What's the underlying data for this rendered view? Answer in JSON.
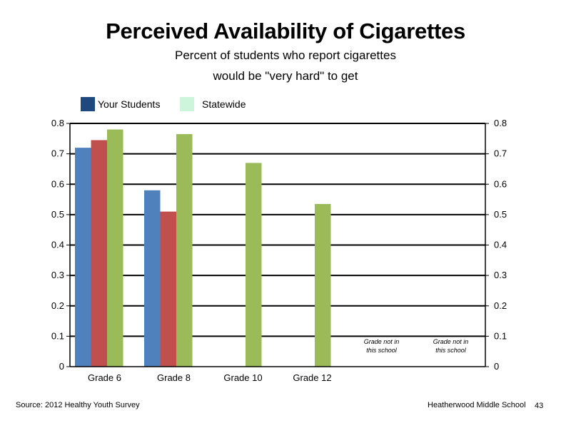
{
  "title": "Perceived Availability of Cigarettes",
  "subtitle_line1": "Percent of students who report cigarettes",
  "subtitle_line2": "would be \"very hard\" to get",
  "legend": [
    {
      "label": "Your Students",
      "color": "#1F497D"
    },
    {
      "label": "Statewide",
      "color": "#CCF5DC"
    }
  ],
  "chart_data": {
    "type": "bar",
    "categories": [
      "Grade 6",
      "Grade 8",
      "Grade 10",
      "Grade 12",
      "",
      ""
    ],
    "series": [
      {
        "color": "#4F81BD",
        "values": [
          0.72,
          0.58,
          null,
          null,
          null,
          null
        ]
      },
      {
        "color": "#C0504D",
        "values": [
          0.745,
          0.51,
          null,
          null,
          null,
          null
        ]
      },
      {
        "color": "#9BBB59",
        "values": [
          0.78,
          0.765,
          0.67,
          0.535,
          null,
          null
        ]
      }
    ],
    "ylim": [
      0,
      0.8
    ],
    "yticks": [
      "0",
      "0.1",
      "0.2",
      "0.3",
      "0.4",
      "0.5",
      "0.6",
      "0.7",
      "0.8"
    ],
    "secondary_yticks": [
      "0",
      "0.1",
      "0.2",
      "0.3",
      "0.4",
      "0.5",
      "0.6",
      "0.7",
      "0.8"
    ],
    "grid": true,
    "annotations": [
      {
        "line1": "Grade not in",
        "line2": "this school"
      },
      {
        "line1": "Grade not in",
        "line2": "this school"
      }
    ]
  },
  "footer": {
    "source": "Source: 2012 Healthy Youth Survey",
    "school": "Heatherwood Middle  School",
    "page": "43"
  }
}
